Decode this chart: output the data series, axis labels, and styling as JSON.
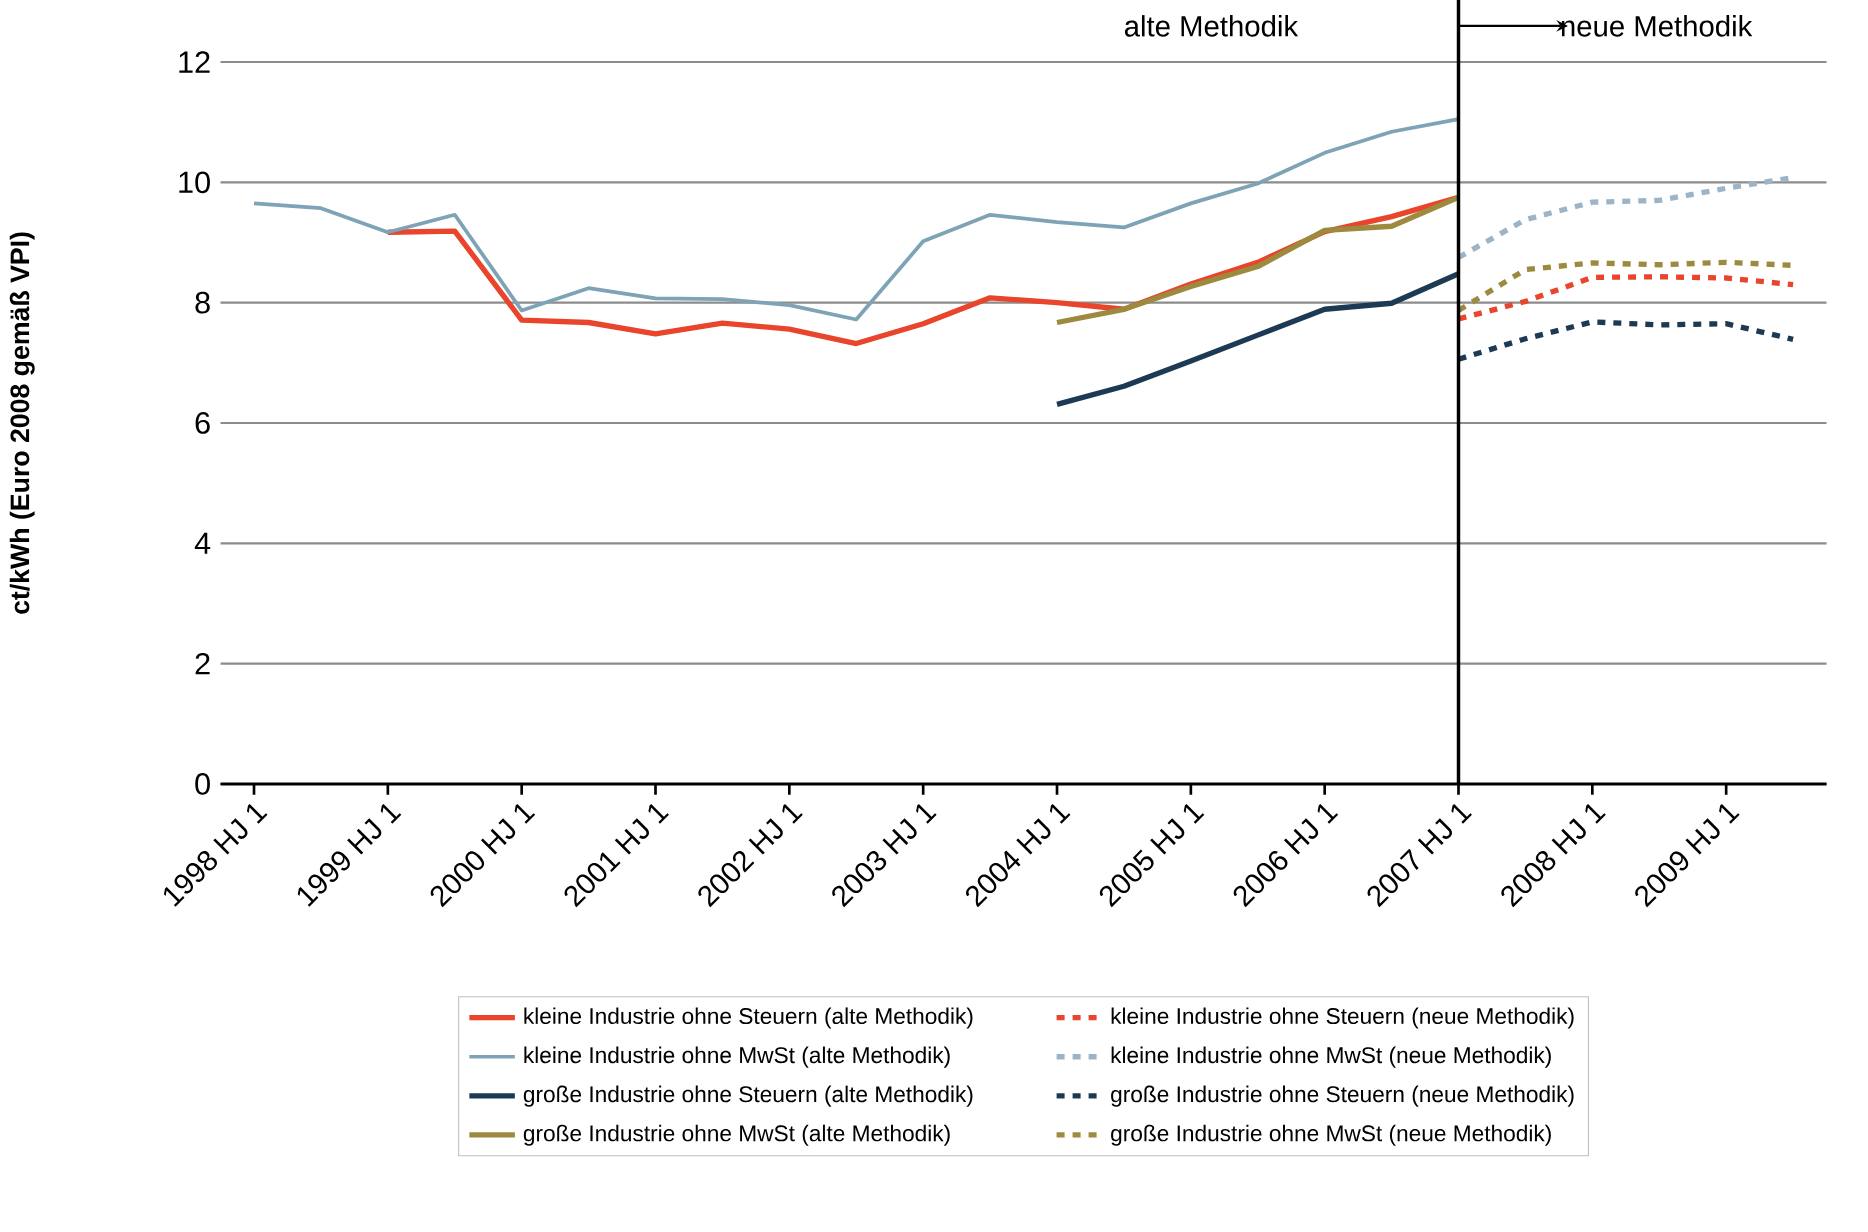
{
  "chart_data": {
    "type": "line",
    "ylabel": "ct/kWh (Euro 2008 gemäß VPI)",
    "categories": [
      "1998 HJ 1",
      null,
      "1999 HJ 1",
      null,
      "2000 HJ 1",
      null,
      "2001 HJ 1",
      null,
      "2002 HJ 1",
      null,
      "2003 HJ 1",
      null,
      "2004 HJ 1",
      null,
      "2005 HJ 1",
      null,
      "2006 HJ 1",
      null,
      "2007 HJ 1",
      null,
      "2008 HJ 1",
      null,
      "2009 HJ 1",
      null
    ],
    "ylim": [
      0,
      12
    ],
    "yticks": [
      0,
      2,
      4,
      6,
      8,
      10,
      12
    ],
    "grid": "y",
    "legend": "bottom",
    "marker": "none",
    "series": [
      {
        "name": "kleine Industrie ohne Steuern (alte Methodik)",
        "color": "#e8452c",
        "line_style": "solid",
        "values": [
          null,
          null,
          9.17,
          9.19,
          7.71,
          7.67,
          7.48,
          7.66,
          7.56,
          7.32,
          7.65,
          8.08,
          8.0,
          7.89,
          8.31,
          8.67,
          9.18,
          9.43,
          9.75,
          null,
          null,
          null,
          null,
          null
        ]
      },
      {
        "name": "kleine Industrie ohne Steuern (neue Methodik)",
        "color": "#e8452c",
        "line_style": "dashed",
        "values": [
          null,
          null,
          null,
          null,
          null,
          null,
          null,
          null,
          null,
          null,
          null,
          null,
          null,
          null,
          null,
          null,
          null,
          null,
          7.73,
          8.02,
          8.42,
          8.43,
          8.41,
          8.3
        ]
      },
      {
        "name": "kleine Industrie ohne MwSt (alte Methodik)",
        "color": "#7ea3b6",
        "line_style": "solid",
        "values": [
          9.65,
          9.57,
          9.17,
          9.46,
          7.87,
          8.24,
          8.07,
          8.06,
          7.96,
          7.72,
          9.02,
          9.46,
          9.34,
          9.25,
          9.65,
          9.98,
          10.49,
          10.84,
          11.05,
          null,
          null,
          null,
          null,
          null
        ]
      },
      {
        "name": "kleine Industrie ohne MwSt (neue Methodik)",
        "color": "#9db4c6",
        "line_style": "dashed",
        "values": [
          null,
          null,
          null,
          null,
          null,
          null,
          null,
          null,
          null,
          null,
          null,
          null,
          null,
          null,
          null,
          null,
          null,
          null,
          8.75,
          9.38,
          9.67,
          9.7,
          9.9,
          10.08
        ]
      },
      {
        "name": "große Industrie ohne Steuern (alte Methodik)",
        "color": "#1d3a55",
        "line_style": "solid",
        "values": [
          null,
          null,
          null,
          null,
          null,
          null,
          null,
          null,
          null,
          null,
          null,
          null,
          6.31,
          6.61,
          7.03,
          7.46,
          7.89,
          7.99,
          8.48,
          null,
          null,
          null,
          null,
          null
        ]
      },
      {
        "name": "große Industrie ohne Steuern (neue Methodik)",
        "color": "#1d3a55",
        "line_style": "dashed",
        "values": [
          null,
          null,
          null,
          null,
          null,
          null,
          null,
          null,
          null,
          null,
          null,
          null,
          null,
          null,
          null,
          null,
          null,
          null,
          7.06,
          7.4,
          7.68,
          7.63,
          7.65,
          7.39
        ]
      },
      {
        "name": "große Industrie ohne MwSt (alte Methodik)",
        "color": "#9c8a3e",
        "line_style": "solid",
        "values": [
          null,
          null,
          null,
          null,
          null,
          null,
          null,
          null,
          null,
          null,
          null,
          null,
          7.67,
          7.89,
          8.27,
          8.6,
          9.2,
          9.27,
          9.75,
          null,
          null,
          null,
          null,
          null
        ]
      },
      {
        "name": "große Industrie ohne MwSt (neue Methodik)",
        "color": "#9c8a3e",
        "line_style": "dashed",
        "values": [
          null,
          null,
          null,
          null,
          null,
          null,
          null,
          null,
          null,
          null,
          null,
          null,
          null,
          null,
          null,
          null,
          null,
          null,
          7.87,
          8.55,
          8.66,
          8.63,
          8.67,
          8.62
        ]
      }
    ],
    "ref_lines": [
      {
        "axis": "x",
        "value": "2007 HJ 1",
        "label": "neue Methodik",
        "color": "#000000"
      }
    ],
    "annotations": [
      "alte Methodik"
    ]
  }
}
